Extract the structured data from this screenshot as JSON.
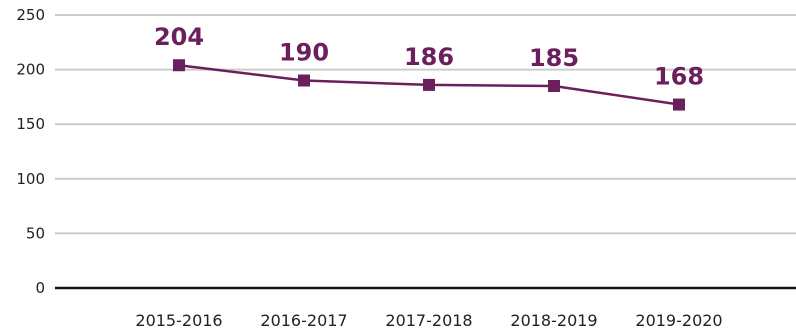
{
  "chart_data": {
    "type": "line",
    "categories": [
      "2015-2016",
      "2016-2017",
      "2017-2018",
      "2018-2019",
      "2019-2020"
    ],
    "values": [
      204,
      190,
      186,
      185,
      168
    ],
    "data_labels": [
      "204",
      "190",
      "186",
      "185",
      "168"
    ],
    "yticks": [
      0,
      50,
      100,
      150,
      200,
      250
    ],
    "ylim": [
      0,
      250
    ],
    "grid": true,
    "legend": "none",
    "marker": "square",
    "line_color": "#6b1f5c",
    "label_color": "#6b1f5c",
    "grid_color": "#cccccc",
    "axis_color": "#111111"
  }
}
